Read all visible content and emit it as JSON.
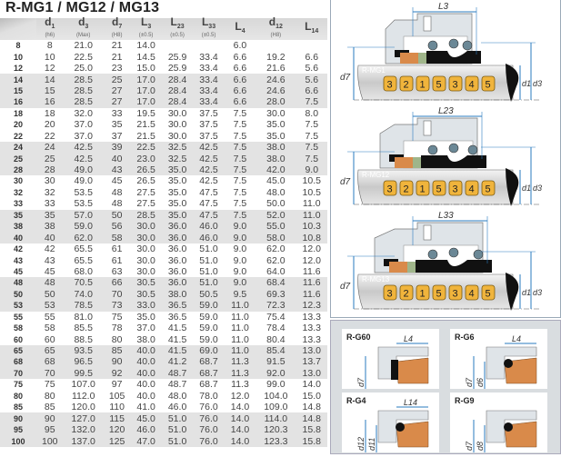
{
  "title": "R-MG1 / MG12 / MG13",
  "columns": [
    {
      "main": "d",
      "sub": "1",
      "note": "(h6)"
    },
    {
      "main": "d",
      "sub": "3",
      "note": "(Max)"
    },
    {
      "main": "d",
      "sub": "7",
      "note": "(H8)"
    },
    {
      "main": "L",
      "sub": "3",
      "note": "(±0.5)"
    },
    {
      "main": "L",
      "sub": "23",
      "note": "(±0.5)"
    },
    {
      "main": "L",
      "sub": "33",
      "note": "(±0.5)"
    },
    {
      "main": "L",
      "sub": "4",
      "note": ""
    },
    {
      "main": "d",
      "sub": "12",
      "note": "(H8)"
    },
    {
      "main": "L",
      "sub": "14",
      "note": ""
    }
  ],
  "rows": [
    [
      "8",
      "8",
      "21.0",
      "21",
      "14.0",
      "",
      "",
      "6.0",
      "",
      ""
    ],
    [
      "10",
      "10",
      "22.5",
      "21",
      "14.5",
      "25.9",
      "33.4",
      "6.6",
      "19.2",
      "6.6"
    ],
    [
      "12",
      "12",
      "25.0",
      "23",
      "15.0",
      "25.9",
      "33.4",
      "6.6",
      "21.6",
      "5.6"
    ],
    [
      "14",
      "14",
      "28.5",
      "25",
      "17.0",
      "28.4",
      "33.4",
      "6.6",
      "24.6",
      "5.6"
    ],
    [
      "15",
      "15",
      "28.5",
      "27",
      "17.0",
      "28.4",
      "33.4",
      "6.6",
      "24.6",
      "6.6"
    ],
    [
      "16",
      "16",
      "28.5",
      "27",
      "17.0",
      "28.4",
      "33.4",
      "6.6",
      "28.0",
      "7.5"
    ],
    [
      "18",
      "18",
      "32.0",
      "33",
      "19.5",
      "30.0",
      "37.5",
      "7.5",
      "30.0",
      "8.0"
    ],
    [
      "20",
      "20",
      "37.0",
      "35",
      "21.5",
      "30.0",
      "37.5",
      "7.5",
      "35.0",
      "7.5"
    ],
    [
      "22",
      "22",
      "37.0",
      "37",
      "21.5",
      "30.0",
      "37.5",
      "7.5",
      "35.0",
      "7.5"
    ],
    [
      "24",
      "24",
      "42.5",
      "39",
      "22.5",
      "32.5",
      "42.5",
      "7.5",
      "38.0",
      "7.5"
    ],
    [
      "25",
      "25",
      "42.5",
      "40",
      "23.0",
      "32.5",
      "42.5",
      "7.5",
      "38.0",
      "7.5"
    ],
    [
      "28",
      "28",
      "49.0",
      "43",
      "26.5",
      "35.0",
      "42.5",
      "7.5",
      "42.0",
      "9.0"
    ],
    [
      "30",
      "30",
      "49.0",
      "45",
      "26.5",
      "35.0",
      "42.5",
      "7.5",
      "45.0",
      "10.5"
    ],
    [
      "32",
      "32",
      "53.5",
      "48",
      "27.5",
      "35.0",
      "47.5",
      "7.5",
      "48.0",
      "10.5"
    ],
    [
      "33",
      "33",
      "53.5",
      "48",
      "27.5",
      "35.0",
      "47.5",
      "7.5",
      "50.0",
      "11.0"
    ],
    [
      "35",
      "35",
      "57.0",
      "50",
      "28.5",
      "35.0",
      "47.5",
      "7.5",
      "52.0",
      "11.0"
    ],
    [
      "38",
      "38",
      "59.0",
      "56",
      "30.0",
      "36.0",
      "46.0",
      "9.0",
      "55.0",
      "10.3"
    ],
    [
      "40",
      "40",
      "62.0",
      "58",
      "30.0",
      "36.0",
      "46.0",
      "9.0",
      "58.0",
      "10.8"
    ],
    [
      "42",
      "42",
      "65.5",
      "61",
      "30.0",
      "36.0",
      "51.0",
      "9.0",
      "62.0",
      "12.0"
    ],
    [
      "43",
      "43",
      "65.5",
      "61",
      "30.0",
      "36.0",
      "51.0",
      "9.0",
      "62.0",
      "12.0"
    ],
    [
      "45",
      "45",
      "68.0",
      "63",
      "30.0",
      "36.0",
      "51.0",
      "9.0",
      "64.0",
      "11.6"
    ],
    [
      "48",
      "48",
      "70.5",
      "66",
      "30.5",
      "36.0",
      "51.0",
      "9.0",
      "68.4",
      "11.6"
    ],
    [
      "50",
      "50",
      "74.0",
      "70",
      "30.5",
      "38.0",
      "50.5",
      "9.5",
      "69.3",
      "11.6"
    ],
    [
      "53",
      "53",
      "78.5",
      "73",
      "33.0",
      "36.5",
      "59.0",
      "11.0",
      "72.3",
      "12.3"
    ],
    [
      "55",
      "55",
      "81.0",
      "75",
      "35.0",
      "36.5",
      "59.0",
      "11.0",
      "75.4",
      "13.3"
    ],
    [
      "58",
      "58",
      "85.5",
      "78",
      "37.0",
      "41.5",
      "59.0",
      "11.0",
      "78.4",
      "13.3"
    ],
    [
      "60",
      "60",
      "88.5",
      "80",
      "38.0",
      "41.5",
      "59.0",
      "11.0",
      "80.4",
      "13.3"
    ],
    [
      "65",
      "65",
      "93.5",
      "85",
      "40.0",
      "41.5",
      "69.0",
      "11.0",
      "85.4",
      "13.0"
    ],
    [
      "68",
      "68",
      "96.5",
      "90",
      "40.0",
      "41.2",
      "68.7",
      "11.3",
      "91.5",
      "13.7"
    ],
    [
      "70",
      "70",
      "99.5",
      "92",
      "40.0",
      "48.7",
      "68.7",
      "11.3",
      "92.0",
      "13.0"
    ],
    [
      "75",
      "75",
      "107.0",
      "97",
      "40.0",
      "48.7",
      "68.7",
      "11.3",
      "99.0",
      "14.0"
    ],
    [
      "80",
      "80",
      "112.0",
      "105",
      "40.0",
      "48.0",
      "78.0",
      "12.0",
      "104.0",
      "15.0"
    ],
    [
      "85",
      "85",
      "120.0",
      "110",
      "41.0",
      "46.0",
      "76.0",
      "14.0",
      "109.0",
      "14.8"
    ],
    [
      "90",
      "90",
      "127.0",
      "115",
      "45.0",
      "51.0",
      "76.0",
      "14.0",
      "114.0",
      "14.8"
    ],
    [
      "95",
      "95",
      "132.0",
      "120",
      "46.0",
      "51.0",
      "76.0",
      "14.0",
      "120.3",
      "15.8"
    ],
    [
      "100",
      "100",
      "137.0",
      "125",
      "47.0",
      "51.0",
      "76.0",
      "14.0",
      "123.3",
      "15.8"
    ]
  ],
  "diagrams": [
    {
      "label": "R-MG1",
      "length": "L3",
      "parts": [
        "3",
        "2",
        "1",
        "5",
        "3",
        "4",
        "5"
      ],
      "d_left": "d7",
      "d_right1": "d1",
      "d_right2": "d3"
    },
    {
      "label": "R-MG12",
      "length": "L23",
      "parts": [
        "3",
        "2",
        "1",
        "5",
        "3",
        "4",
        "5"
      ],
      "d_left": "d7",
      "d_right1": "d1",
      "d_right2": "d3"
    },
    {
      "label": "R-MG13",
      "length": "L33",
      "parts": [
        "3",
        "2",
        "1",
        "5",
        "3",
        "4",
        "5"
      ],
      "d_left": "d7",
      "d_right1": "d1",
      "d_right2": "d3"
    }
  ],
  "seats": [
    {
      "label": "R-G60",
      "length": "L4",
      "dims": [
        "d7"
      ]
    },
    {
      "label": "R-G6",
      "length": "L4",
      "dims": [
        "d7",
        "d6"
      ]
    },
    {
      "label": "R-G4",
      "length": "L14",
      "dims": [
        "d12",
        "d11"
      ]
    },
    {
      "label": "R-G9",
      "length": "",
      "dims": [
        "d7",
        "d8"
      ]
    }
  ],
  "colors": {
    "dimension": "#2a7bbf",
    "part_badge": "#f0b43c",
    "seat_ring": "#d98a4a",
    "elastomer": "#111111",
    "housing": "#dfe4e8"
  }
}
